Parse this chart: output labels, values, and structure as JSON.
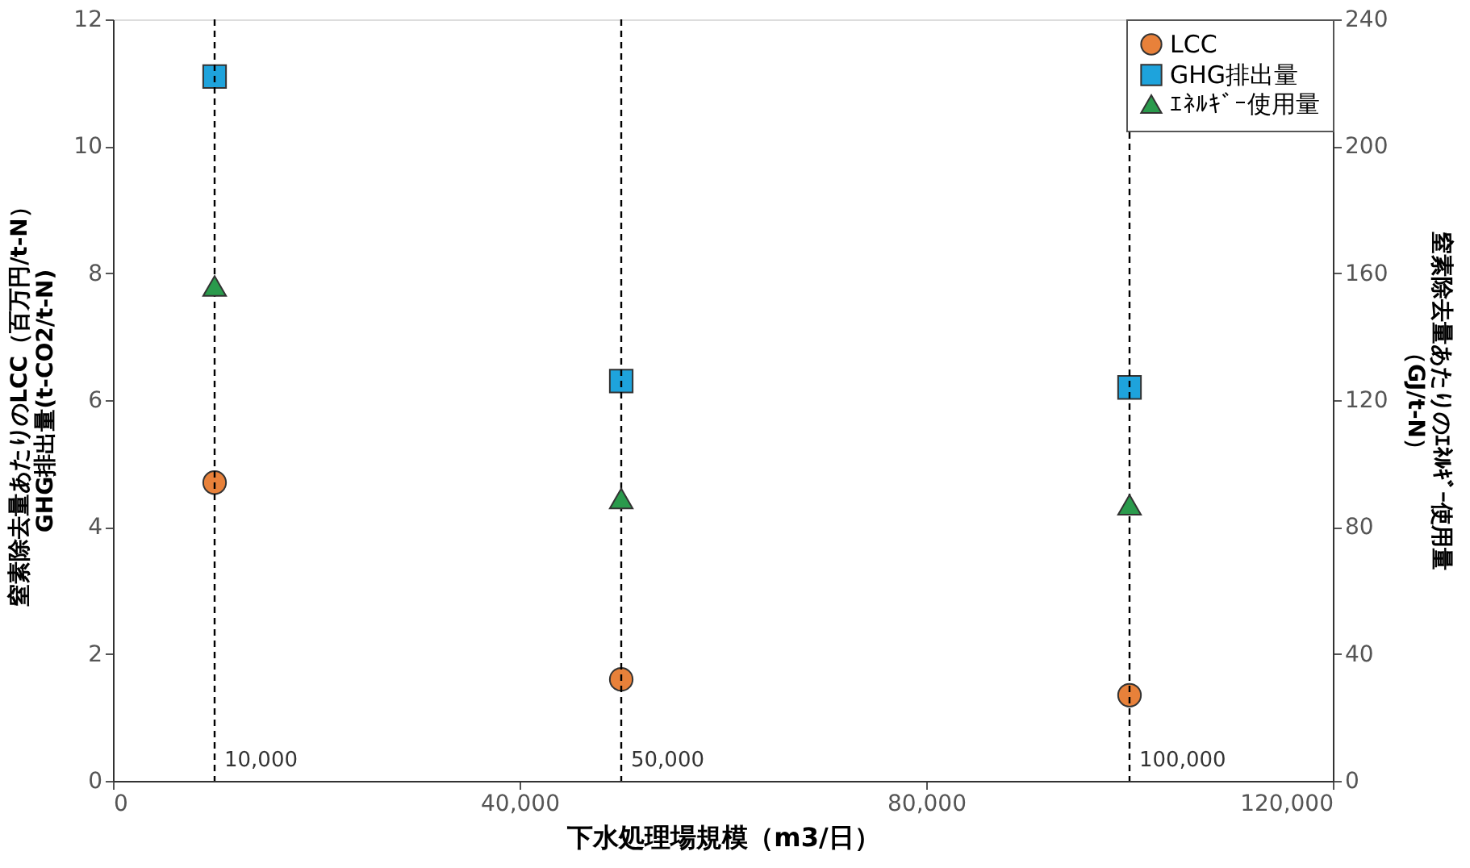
{
  "chart_data": {
    "type": "scatter",
    "xlabel": "下水処理場規模（m3/日）",
    "ylabel": "窒素除去量あたりのLCC（百万円/t-N）GHG排出量(t-CO2/t-N)",
    "y2label": "窒素除去量あたりのｴﾈﾙｷﾞｰ使用量（GJ/t-N）",
    "x": [
      10000,
      50000,
      100000
    ],
    "series": [
      {
        "name": "LCC",
        "color": "#e8813a",
        "marker": "circle",
        "values": [
          4.7,
          1.6,
          1.35
        ]
      },
      {
        "name": "GHG排出量",
        "color": "#1ea3dc",
        "marker": "square",
        "values": [
          11.1,
          6.3,
          6.2
        ]
      },
      {
        "name": "ｴﾈﾙｷﾞｰ使用量",
        "color": "#2a9a4c",
        "marker": "triangle",
        "axis": "y2",
        "values": [
          156,
          89,
          87
        ]
      }
    ],
    "xlim": [
      0,
      120000
    ],
    "xticks": [
      0,
      {
        "value": 40000,
        "label": "40,000"
      },
      {
        "value": 80000,
        "label": "80,000"
      },
      {
        "value": 120000,
        "label": "120,000"
      }
    ],
    "ylim": [
      0,
      12
    ],
    "yticks": [
      0,
      2,
      4,
      6,
      8,
      10,
      12
    ],
    "y2lim": [
      0,
      240
    ],
    "y2ticks": [
      0,
      40,
      80,
      120,
      160,
      200,
      240
    ],
    "ref_lines": [
      {
        "axis": "x",
        "value": 10000,
        "label": "10,000",
        "color": "#000000",
        "line_style": "dashed"
      },
      {
        "axis": "x",
        "value": 50000,
        "label": "50,000",
        "color": "#000000",
        "line_style": "dashed"
      },
      {
        "axis": "x",
        "value": 100000,
        "label": "100,000",
        "color": "#000000",
        "line_style": "dashed"
      }
    ],
    "grid": false,
    "legend": "top right"
  }
}
